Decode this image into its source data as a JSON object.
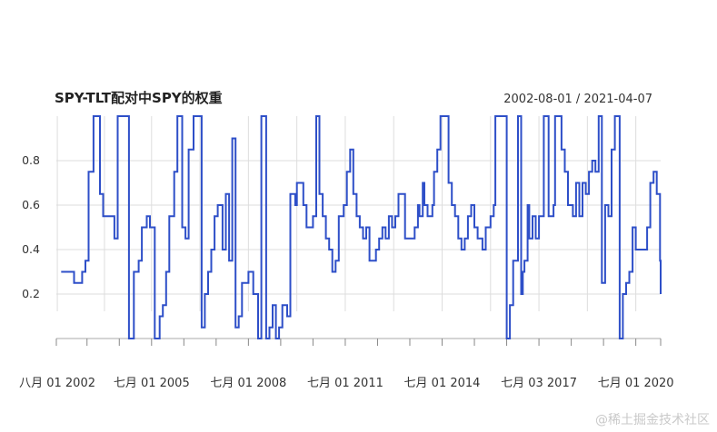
{
  "chart_data": {
    "type": "line",
    "title": "SPY-TLT配对中SPY的权重",
    "date_range": "2002-08-01 / 2021-04-07",
    "x_range": [
      2002.55,
      2021.27
    ],
    "ylim": [
      0.0,
      1.0
    ],
    "y_ticks": [
      "0.2",
      "0.4",
      "0.6",
      "0.8"
    ],
    "y_tick_values": [
      0.2,
      0.4,
      0.6,
      0.8
    ],
    "x_ticks": [
      {
        "label": "八月 01 2002",
        "x": 2002.58
      },
      {
        "label": "七月 01 2005",
        "x": 2005.5
      },
      {
        "label": "七月 01 2008",
        "x": 2008.5
      },
      {
        "label": "七月 01 2011",
        "x": 2011.5
      },
      {
        "label": "七月 01 2014",
        "x": 2014.5
      },
      {
        "label": "七月 03 2017",
        "x": 2017.5
      },
      {
        "label": "七月 01 2020",
        "x": 2020.5
      }
    ],
    "grid": true,
    "colors": {
      "line": "#2e4fc8",
      "grid": "#dddddd",
      "axis": "#aaaaaa"
    },
    "series": [
      {
        "step": "post",
        "points": [
          [
            2002.85,
            0.3
          ],
          [
            2003.1,
            0.25
          ],
          [
            2003.35,
            0.3
          ],
          [
            2003.45,
            0.35
          ],
          [
            2003.55,
            0.75
          ],
          [
            2003.7,
            1.0
          ],
          [
            2003.9,
            0.65
          ],
          [
            2004.0,
            0.55
          ],
          [
            2004.35,
            0.45
          ],
          [
            2004.45,
            1.0
          ],
          [
            2004.8,
            0.0
          ],
          [
            2004.95,
            0.3
          ],
          [
            2005.1,
            0.35
          ],
          [
            2005.2,
            0.5
          ],
          [
            2005.35,
            0.55
          ],
          [
            2005.45,
            0.5
          ],
          [
            2005.6,
            0.0
          ],
          [
            2005.75,
            0.1
          ],
          [
            2005.85,
            0.15
          ],
          [
            2005.95,
            0.3
          ],
          [
            2006.05,
            0.55
          ],
          [
            2006.2,
            0.75
          ],
          [
            2006.3,
            1.0
          ],
          [
            2006.45,
            0.5
          ],
          [
            2006.55,
            0.45
          ],
          [
            2006.65,
            0.85
          ],
          [
            2006.8,
            1.0
          ],
          [
            2007.05,
            0.05
          ],
          [
            2007.15,
            0.2
          ],
          [
            2007.25,
            0.3
          ],
          [
            2007.35,
            0.4
          ],
          [
            2007.45,
            0.55
          ],
          [
            2007.55,
            0.6
          ],
          [
            2007.7,
            0.4
          ],
          [
            2007.8,
            0.65
          ],
          [
            2007.9,
            0.35
          ],
          [
            2008.0,
            0.9
          ],
          [
            2008.1,
            0.05
          ],
          [
            2008.2,
            0.1
          ],
          [
            2008.3,
            0.25
          ],
          [
            2008.5,
            0.3
          ],
          [
            2008.65,
            0.2
          ],
          [
            2008.8,
            0.0
          ],
          [
            2008.9,
            1.0
          ],
          [
            2009.05,
            0.0
          ],
          [
            2009.15,
            0.05
          ],
          [
            2009.25,
            0.15
          ],
          [
            2009.35,
            0.0
          ],
          [
            2009.45,
            0.05
          ],
          [
            2009.55,
            0.15
          ],
          [
            2009.7,
            0.1
          ],
          [
            2009.8,
            0.65
          ],
          [
            2009.95,
            0.6
          ],
          [
            2010.0,
            0.7
          ],
          [
            2010.2,
            0.6
          ],
          [
            2010.3,
            0.5
          ],
          [
            2010.5,
            0.55
          ],
          [
            2010.6,
            1.0
          ],
          [
            2010.7,
            0.65
          ],
          [
            2010.8,
            0.55
          ],
          [
            2010.9,
            0.45
          ],
          [
            2011.0,
            0.4
          ],
          [
            2011.1,
            0.3
          ],
          [
            2011.2,
            0.35
          ],
          [
            2011.3,
            0.55
          ],
          [
            2011.45,
            0.6
          ],
          [
            2011.55,
            0.75
          ],
          [
            2011.65,
            0.85
          ],
          [
            2011.75,
            0.65
          ],
          [
            2011.85,
            0.55
          ],
          [
            2011.95,
            0.5
          ],
          [
            2012.05,
            0.45
          ],
          [
            2012.15,
            0.5
          ],
          [
            2012.25,
            0.35
          ],
          [
            2012.45,
            0.4
          ],
          [
            2012.55,
            0.45
          ],
          [
            2012.65,
            0.5
          ],
          [
            2012.75,
            0.45
          ],
          [
            2012.85,
            0.55
          ],
          [
            2012.95,
            0.5
          ],
          [
            2013.05,
            0.55
          ],
          [
            2013.15,
            0.65
          ],
          [
            2013.35,
            0.45
          ],
          [
            2013.65,
            0.5
          ],
          [
            2013.75,
            0.6
          ],
          [
            2013.8,
            0.55
          ],
          [
            2013.9,
            0.7
          ],
          [
            2013.95,
            0.6
          ],
          [
            2014.05,
            0.55
          ],
          [
            2014.2,
            0.6
          ],
          [
            2014.25,
            0.75
          ],
          [
            2014.35,
            0.85
          ],
          [
            2014.45,
            1.0
          ],
          [
            2014.7,
            0.7
          ],
          [
            2014.8,
            0.6
          ],
          [
            2014.9,
            0.55
          ],
          [
            2015.0,
            0.45
          ],
          [
            2015.1,
            0.4
          ],
          [
            2015.2,
            0.45
          ],
          [
            2015.3,
            0.55
          ],
          [
            2015.4,
            0.6
          ],
          [
            2015.5,
            0.5
          ],
          [
            2015.6,
            0.45
          ],
          [
            2015.75,
            0.4
          ],
          [
            2015.85,
            0.5
          ],
          [
            2016.0,
            0.55
          ],
          [
            2016.1,
            0.6
          ],
          [
            2016.15,
            1.0
          ],
          [
            2016.5,
            0.0
          ],
          [
            2016.6,
            0.15
          ],
          [
            2016.7,
            0.35
          ],
          [
            2016.85,
            1.0
          ],
          [
            2016.95,
            0.2
          ],
          [
            2017.0,
            0.3
          ],
          [
            2017.05,
            0.35
          ],
          [
            2017.15,
            0.6
          ],
          [
            2017.2,
            0.45
          ],
          [
            2017.3,
            0.55
          ],
          [
            2017.4,
            0.45
          ],
          [
            2017.5,
            0.55
          ],
          [
            2017.65,
            1.0
          ],
          [
            2017.8,
            0.55
          ],
          [
            2017.95,
            0.6
          ],
          [
            2018.0,
            1.0
          ],
          [
            2018.2,
            0.85
          ],
          [
            2018.3,
            0.75
          ],
          [
            2018.4,
            0.6
          ],
          [
            2018.55,
            0.55
          ],
          [
            2018.65,
            0.7
          ],
          [
            2018.75,
            0.55
          ],
          [
            2018.85,
            0.7
          ],
          [
            2018.95,
            0.65
          ],
          [
            2019.05,
            0.75
          ],
          [
            2019.15,
            0.8
          ],
          [
            2019.25,
            0.75
          ],
          [
            2019.35,
            1.0
          ],
          [
            2019.45,
            0.25
          ],
          [
            2019.55,
            0.6
          ],
          [
            2019.65,
            0.55
          ],
          [
            2019.75,
            0.85
          ],
          [
            2019.85,
            1.0
          ],
          [
            2020.0,
            0.0
          ],
          [
            2020.1,
            0.2
          ],
          [
            2020.2,
            0.25
          ],
          [
            2020.3,
            0.3
          ],
          [
            2020.4,
            0.5
          ],
          [
            2020.5,
            0.4
          ],
          [
            2020.85,
            0.5
          ],
          [
            2020.95,
            0.7
          ],
          [
            2021.05,
            0.75
          ],
          [
            2021.15,
            0.65
          ],
          [
            2021.25,
            0.35
          ],
          [
            2021.3,
            0.2
          ],
          [
            2021.5,
            0.25
          ],
          [
            2021.55,
            0.25
          ]
        ],
        "start": [
          2002.7,
          0.3
        ]
      }
    ]
  },
  "watermark": "@稀土掘金技术社区"
}
